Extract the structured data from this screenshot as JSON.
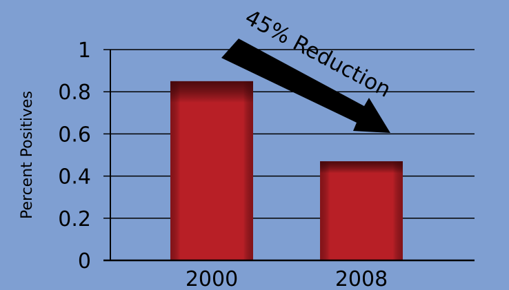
{
  "chart_data": {
    "type": "bar",
    "categories": [
      "2000",
      "2008"
    ],
    "values": [
      0.85,
      0.47
    ],
    "ylabel": "Percent Positives",
    "xlabel": "",
    "ylim": [
      0,
      1
    ],
    "yticks": [
      "0",
      "0.2",
      "0.4",
      "0.6",
      "0.8",
      "1"
    ],
    "grid": true,
    "legend": "none",
    "annotation": "45% Reduction",
    "colors": {
      "background": "#7f9fd2",
      "bar": "#b81f26",
      "bar_edge": "#5a0a0e",
      "grid": "#000000",
      "arrow": "#000000"
    }
  }
}
